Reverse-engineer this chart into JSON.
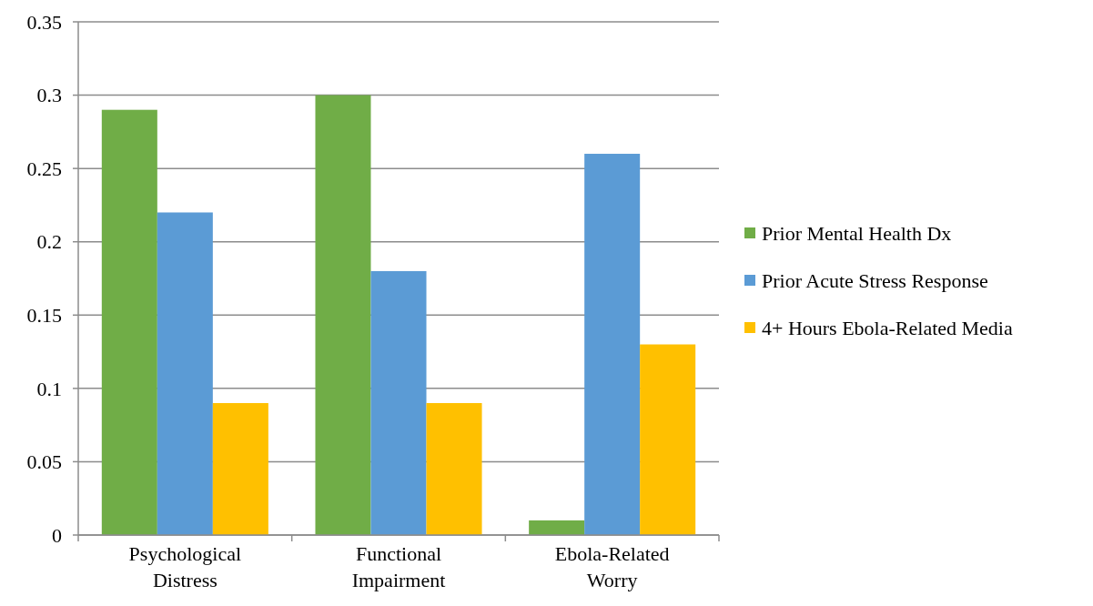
{
  "chart_data": {
    "type": "bar",
    "categories": [
      "Psychological Distress",
      "Functional Impairment",
      "Ebola-Related Worry"
    ],
    "series": [
      {
        "name": "Prior Mental Health Dx",
        "color": "#70ad47",
        "values": [
          0.29,
          0.3,
          0.01
        ]
      },
      {
        "name": "Prior Acute Stress Response",
        "color": "#5b9bd5",
        "values": [
          0.22,
          0.18,
          0.26
        ]
      },
      {
        "name": "4+ Hours Ebola-Related Media",
        "color": "#ffc000",
        "values": [
          0.09,
          0.09,
          0.13
        ]
      }
    ],
    "ylim": [
      0,
      0.35
    ],
    "yticks": [
      0,
      0.05,
      0.1,
      0.15,
      0.2,
      0.25,
      0.3,
      0.35
    ],
    "grid": "y",
    "legend": "right"
  }
}
